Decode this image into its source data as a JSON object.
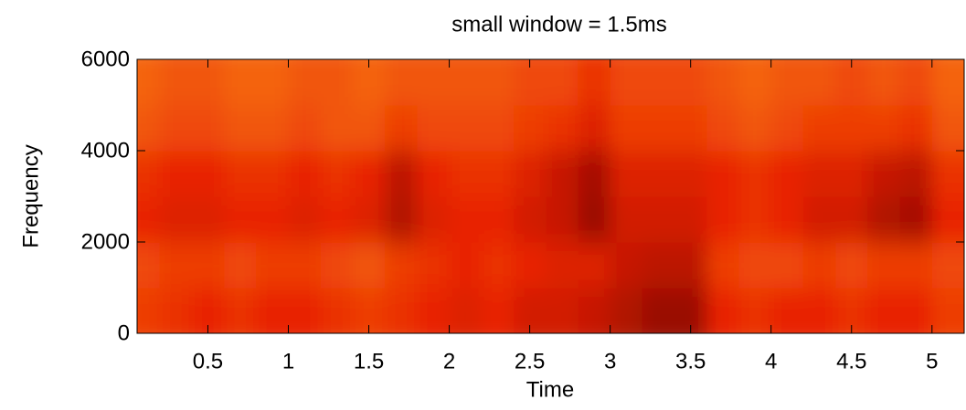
{
  "chart_data": {
    "type": "heatmap",
    "title": "small window = 1.5ms",
    "x_label": "Time",
    "y_label": "Frequency",
    "x_edges": [
      0.06,
      0.2,
      0.4,
      0.6,
      0.8,
      1.0,
      1.2,
      1.4,
      1.6,
      1.8,
      2.0,
      2.2,
      2.4,
      2.6,
      2.8,
      3.0,
      3.2,
      3.4,
      3.6,
      3.8,
      4.0,
      4.2,
      4.4,
      4.6,
      4.8,
      5.0,
      5.2
    ],
    "y_edges": [
      0,
      1000,
      2000,
      3000,
      4000,
      5000,
      6000
    ],
    "values": [
      [
        0.4,
        0.45,
        0.5,
        0.45,
        0.5,
        0.5,
        0.45,
        0.4,
        0.45,
        0.5,
        0.55,
        0.5,
        0.6,
        0.6,
        0.65,
        0.75,
        0.85,
        0.85,
        0.5,
        0.45,
        0.5,
        0.5,
        0.45,
        0.5,
        0.5,
        0.4
      ],
      [
        0.35,
        0.4,
        0.4,
        0.35,
        0.4,
        0.4,
        0.35,
        0.3,
        0.4,
        0.45,
        0.5,
        0.45,
        0.5,
        0.55,
        0.55,
        0.65,
        0.7,
        0.7,
        0.4,
        0.35,
        0.35,
        0.4,
        0.35,
        0.4,
        0.4,
        0.35
      ],
      [
        0.5,
        0.55,
        0.55,
        0.5,
        0.5,
        0.55,
        0.5,
        0.55,
        0.75,
        0.55,
        0.5,
        0.5,
        0.6,
        0.65,
        0.85,
        0.6,
        0.6,
        0.6,
        0.5,
        0.45,
        0.5,
        0.6,
        0.6,
        0.75,
        0.8,
        0.5
      ],
      [
        0.45,
        0.5,
        0.5,
        0.45,
        0.45,
        0.5,
        0.45,
        0.5,
        0.7,
        0.5,
        0.45,
        0.45,
        0.55,
        0.65,
        0.8,
        0.55,
        0.55,
        0.55,
        0.5,
        0.45,
        0.5,
        0.55,
        0.55,
        0.65,
        0.7,
        0.45
      ],
      [
        0.3,
        0.35,
        0.35,
        0.3,
        0.3,
        0.35,
        0.3,
        0.3,
        0.4,
        0.35,
        0.35,
        0.35,
        0.4,
        0.45,
        0.55,
        0.4,
        0.4,
        0.4,
        0.35,
        0.3,
        0.35,
        0.4,
        0.4,
        0.4,
        0.45,
        0.3
      ],
      [
        0.25,
        0.3,
        0.3,
        0.25,
        0.25,
        0.3,
        0.3,
        0.25,
        0.3,
        0.3,
        0.3,
        0.3,
        0.35,
        0.35,
        0.45,
        0.35,
        0.35,
        0.35,
        0.3,
        0.25,
        0.3,
        0.3,
        0.35,
        0.3,
        0.35,
        0.25
      ]
    ],
    "colormap": [
      "#ffa418",
      "#e82400",
      "#780000"
    ],
    "xlim": [
      0.06,
      5.2
    ],
    "xticks": [
      0.5,
      1,
      1.5,
      2,
      2.5,
      3,
      3.5,
      4,
      4.5,
      5
    ],
    "ylim": [
      0,
      6000
    ],
    "yticks": [
      0,
      2000,
      4000,
      6000
    ]
  }
}
